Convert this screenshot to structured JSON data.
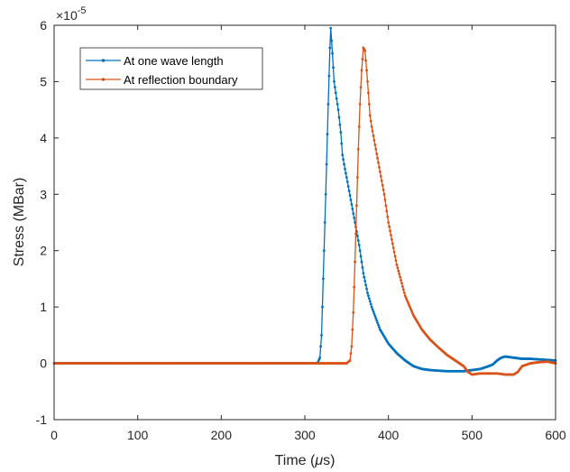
{
  "chart_data": {
    "type": "line",
    "title": "",
    "xlabel": "Time",
    "xlabel_greek": "μ",
    "xlabel_unit": "s",
    "ylabel": "Stress (MBar)",
    "y_multiplier_base": "×10",
    "y_multiplier_exponent": "-5",
    "xlim": [
      0,
      600
    ],
    "ylim": [
      -1,
      6
    ],
    "xticks": [
      "0",
      "100",
      "200",
      "300",
      "400",
      "500",
      "600"
    ],
    "yticks": [
      "-1",
      "0",
      "1",
      "2",
      "3",
      "4",
      "5",
      "6"
    ],
    "grid": false,
    "legend_position": "top-left",
    "series": [
      {
        "name": "At one wave length",
        "color": "#0072BD",
        "x": [
          0,
          100,
          200,
          300,
          315,
          318,
          320,
          322,
          325,
          328,
          330,
          331,
          333,
          335,
          338,
          340,
          343,
          345,
          348,
          350,
          355,
          360,
          365,
          370,
          375,
          380,
          390,
          400,
          410,
          420,
          430,
          440,
          450,
          460,
          470,
          480,
          490,
          500,
          510,
          520,
          525,
          530,
          535,
          540,
          550,
          560,
          570,
          580,
          590,
          600
        ],
        "y": [
          0,
          0,
          0,
          0,
          0,
          0.1,
          0.5,
          1.5,
          3.0,
          4.6,
          5.6,
          5.95,
          5.5,
          5.0,
          4.7,
          4.5,
          4.1,
          3.7,
          3.45,
          3.3,
          2.9,
          2.5,
          2.1,
          1.6,
          1.25,
          1.0,
          0.6,
          0.35,
          0.18,
          0.05,
          -0.05,
          -0.1,
          -0.12,
          -0.13,
          -0.14,
          -0.14,
          -0.14,
          -0.12,
          -0.1,
          -0.05,
          -0.02,
          0.05,
          0.1,
          0.12,
          0.1,
          0.08,
          0.08,
          0.07,
          0.06,
          0.05
        ]
      },
      {
        "name": "At reflection boundary",
        "color": "#D95319",
        "x": [
          0,
          100,
          200,
          300,
          350,
          354,
          356,
          358,
          360,
          362,
          364,
          366,
          368,
          370,
          372,
          374,
          376,
          378,
          380,
          385,
          390,
          395,
          400,
          410,
          420,
          430,
          440,
          450,
          460,
          470,
          480,
          490,
          495,
          500,
          510,
          520,
          530,
          540,
          545,
          550,
          555,
          560,
          570,
          580,
          590,
          600
        ],
        "y": [
          0,
          0,
          0,
          0,
          0,
          0.05,
          0.3,
          0.9,
          1.8,
          2.8,
          3.8,
          4.6,
          5.2,
          5.6,
          5.55,
          5.2,
          4.8,
          4.4,
          4.2,
          3.8,
          3.4,
          3.0,
          2.5,
          1.75,
          1.2,
          0.85,
          0.6,
          0.42,
          0.28,
          0.15,
          0.05,
          -0.05,
          -0.15,
          -0.2,
          -0.18,
          -0.18,
          -0.18,
          -0.2,
          -0.2,
          -0.2,
          -0.15,
          -0.05,
          0.0,
          0.02,
          0.03,
          0.0
        ]
      }
    ]
  }
}
